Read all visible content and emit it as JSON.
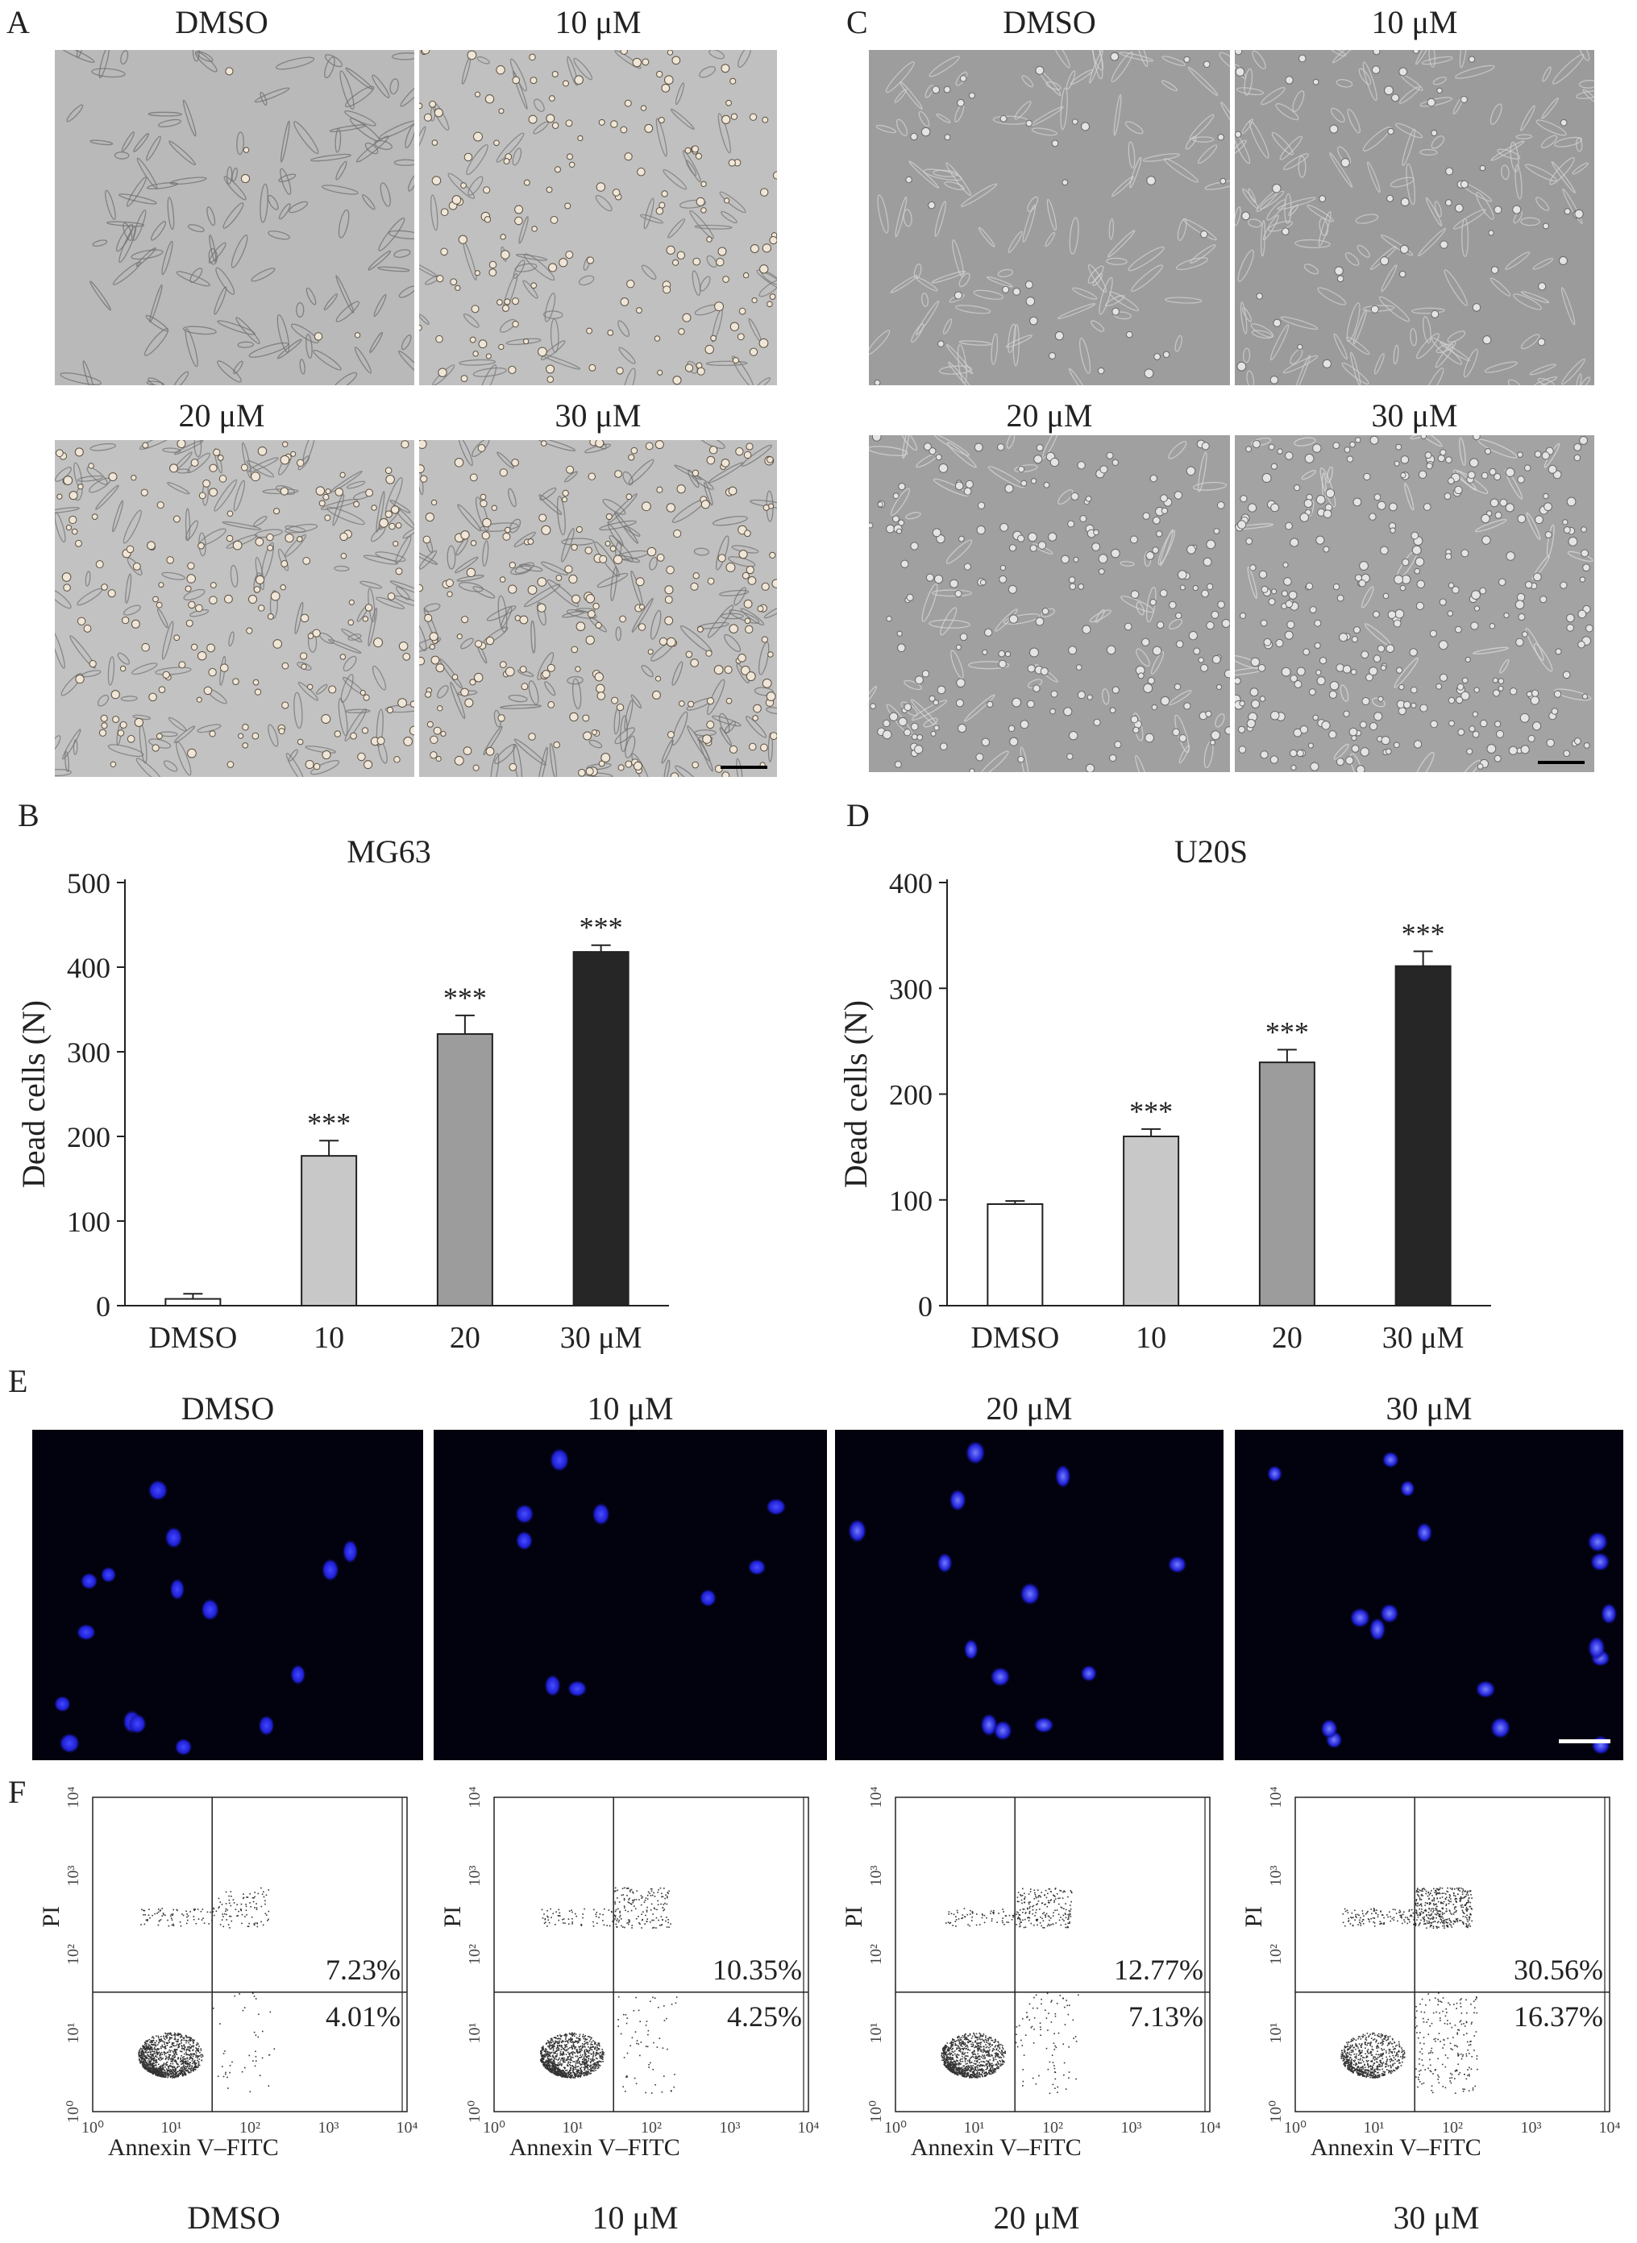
{
  "panels": {
    "A": {
      "label": "A",
      "images": [
        {
          "label": "DMSO",
          "tone": "#b9b9b9",
          "cell": "#6f6f6f",
          "dead": 5,
          "live": 130,
          "scalebar": false
        },
        {
          "label": "10 μM",
          "tone": "#c0c0c0",
          "cell": "#777777",
          "dead": 170,
          "live": 80,
          "scalebar": false
        },
        {
          "label": "20 μM",
          "tone": "#c2c2c2",
          "cell": "#747474",
          "dead": 190,
          "live": 140,
          "scalebar": false
        },
        {
          "label": "30 μM",
          "tone": "#c0c0c0",
          "cell": "#707070",
          "dead": 230,
          "live": 150,
          "scalebar": true
        }
      ]
    },
    "B": {
      "label": "B"
    },
    "C": {
      "label": "C",
      "images": [
        {
          "label": "DMSO",
          "tone": "#9d9d9d",
          "cell": "#d3d3d3",
          "dead": 40,
          "live": 110,
          "scalebar": false
        },
        {
          "label": "10 μM",
          "tone": "#9b9b9b",
          "cell": "#d1d1d1",
          "dead": 60,
          "live": 150,
          "scalebar": false
        },
        {
          "label": "20 μM",
          "tone": "#a0a0a0",
          "cell": "#d8d8d8",
          "dead": 220,
          "live": 60,
          "scalebar": false
        },
        {
          "label": "30 μM",
          "tone": "#a3a3a3",
          "cell": "#dcdcdc",
          "dead": 330,
          "live": 40,
          "scalebar": true
        }
      ]
    },
    "D": {
      "label": "D"
    },
    "E": {
      "label": "E",
      "images": [
        {
          "label": "DMSO",
          "nuclei": 16,
          "brightness": 0.55,
          "scalebar": false
        },
        {
          "label": "10 μM",
          "nuclei": 9,
          "brightness": 0.6,
          "scalebar": false
        },
        {
          "label": "20 μM",
          "nuclei": 13,
          "brightness": 0.95,
          "scalebar": false
        },
        {
          "label": "30 μM",
          "nuclei": 17,
          "brightness": 1.0,
          "scalebar": true
        }
      ]
    },
    "F": {
      "label": "F",
      "plots": [
        {
          "name": "DMSO",
          "upper": "7.23%",
          "lower": "4.01%",
          "xlabel": "Annexin V–FITC",
          "ylabel": "PI",
          "late": 0.07,
          "early": 0.04,
          "top": 0.15
        },
        {
          "name": "10 μM",
          "upper": "10.35%",
          "lower": "4.25%",
          "xlabel": "Annexin V–FITC",
          "ylabel": "PI",
          "late": 0.1,
          "early": 0.04,
          "top": 0.18
        },
        {
          "name": "20 μM",
          "upper": "12.77%",
          "lower": "7.13%",
          "xlabel": "Annexin V–FITC",
          "ylabel": "PI",
          "late": 0.13,
          "early": 0.07,
          "top": 0.2
        },
        {
          "name": "30 μM",
          "upper": "30.56%",
          "lower": "16.37%",
          "xlabel": "Annexin V–FITC",
          "ylabel": "PI",
          "late": 0.3,
          "early": 0.16,
          "top": 0.28
        }
      ],
      "tick_labels": [
        "10⁰",
        "10¹",
        "10²",
        "10³",
        "10⁴"
      ]
    }
  },
  "chart_data": [
    {
      "type": "bar",
      "title": "MG63",
      "ylabel": "Dead cells (N)",
      "xlabel": "",
      "categories": [
        "DMSO",
        "10",
        "20",
        "30 μM"
      ],
      "values": [
        8,
        177,
        321,
        418
      ],
      "errors": [
        6,
        18,
        22,
        8
      ],
      "significance": [
        "",
        "***",
        "***",
        "***"
      ],
      "bar_colors": [
        "#ffffff",
        "#c8c8c8",
        "#9c9c9c",
        "#262626"
      ],
      "ylim": [
        0,
        500
      ],
      "yticks": [
        0,
        100,
        200,
        300,
        400,
        500
      ],
      "grid": false
    },
    {
      "type": "bar",
      "title": "U20S",
      "ylabel": "Dead cells (N)",
      "xlabel": "",
      "categories": [
        "DMSO",
        "10",
        "20",
        "30 μM"
      ],
      "values": [
        96,
        160,
        230,
        321
      ],
      "errors": [
        3,
        7,
        12,
        14
      ],
      "significance": [
        "",
        "***",
        "***",
        "***"
      ],
      "bar_colors": [
        "#ffffff",
        "#c8c8c8",
        "#9c9c9c",
        "#262626"
      ],
      "ylim": [
        0,
        400
      ],
      "yticks": [
        0,
        100,
        200,
        300,
        400
      ],
      "grid": false
    }
  ]
}
